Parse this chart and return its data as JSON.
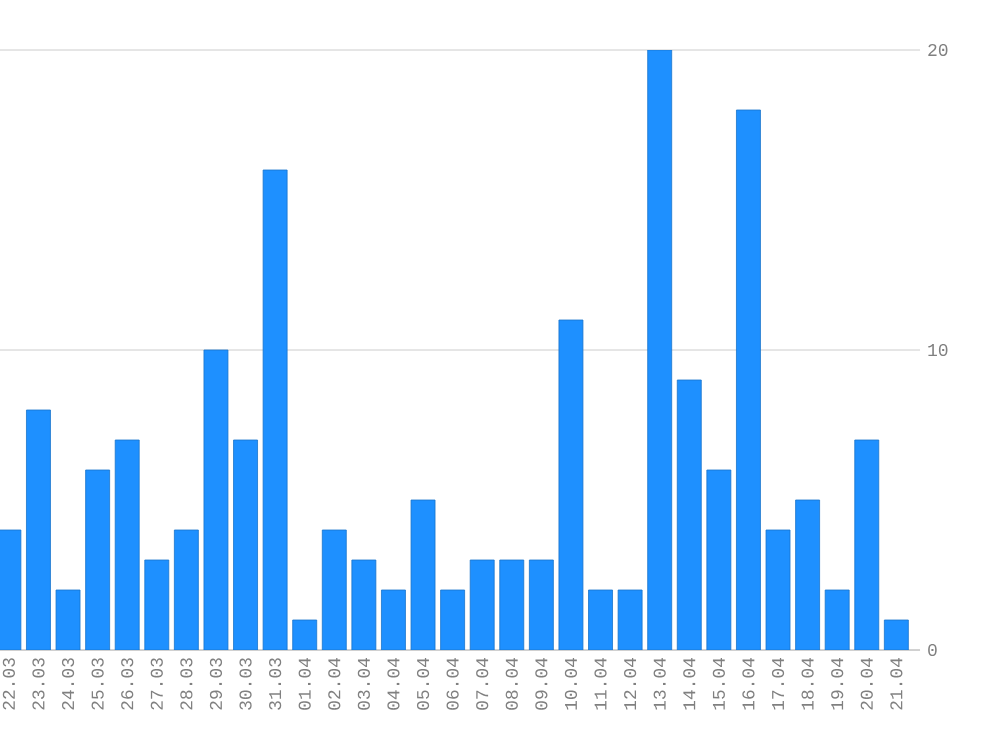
{
  "chart_data": {
    "type": "bar",
    "categories": [
      "22.03",
      "23.03",
      "24.03",
      "25.03",
      "26.03",
      "27.03",
      "28.03",
      "29.03",
      "30.03",
      "31.03",
      "01.04",
      "02.04",
      "03.04",
      "04.04",
      "05.04",
      "06.04",
      "07.04",
      "08.04",
      "09.04",
      "10.04",
      "11.04",
      "12.04",
      "13.04",
      "14.04",
      "15.04",
      "16.04",
      "17.04",
      "18.04",
      "19.04",
      "20.04",
      "21.04"
    ],
    "values": [
      4,
      8,
      2,
      6,
      7,
      3,
      4,
      10,
      7,
      16,
      1,
      4,
      3,
      2,
      5,
      2,
      3,
      3,
      3,
      11,
      2,
      2,
      20,
      9,
      6,
      18,
      4,
      5,
      2,
      7,
      1
    ],
    "color": "#1e90ff",
    "ylim": [
      0,
      20
    ],
    "yticks": [
      0,
      10,
      20
    ],
    "grid": "y"
  }
}
